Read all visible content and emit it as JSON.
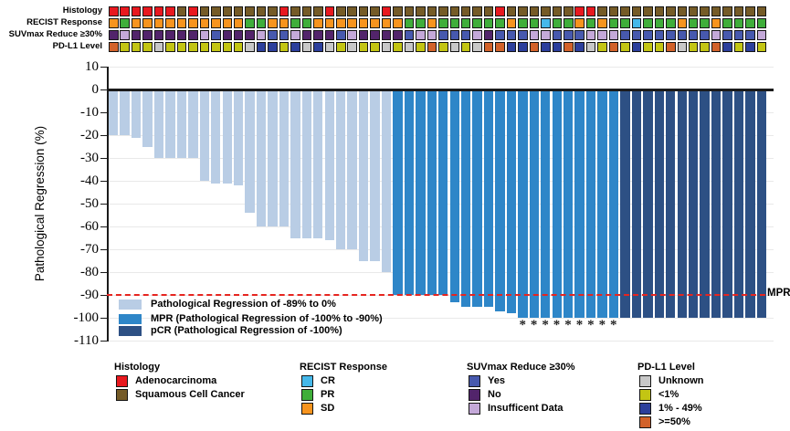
{
  "tracks": {
    "rows": [
      {
        "id": "histology",
        "label": "Histology",
        "values": [
          "A",
          "A",
          "A",
          "A",
          "A",
          "A",
          "S",
          "A",
          "S",
          "S",
          "S",
          "S",
          "S",
          "S",
          "S",
          "A",
          "S",
          "S",
          "S",
          "A",
          "S",
          "S",
          "S",
          "S",
          "A",
          "S",
          "S",
          "S",
          "S",
          "S",
          "S",
          "S",
          "S",
          "S",
          "A",
          "S",
          "S",
          "S",
          "S",
          "S",
          "S",
          "A",
          "A",
          "S",
          "S",
          "S",
          "S",
          "S",
          "S",
          "S",
          "S",
          "S",
          "S",
          "S",
          "S",
          "S",
          "S",
          "S"
        ]
      },
      {
        "id": "recist",
        "label": "RECIST Response",
        "values": [
          "SD",
          "PR",
          "SD",
          "SD",
          "SD",
          "SD",
          "SD",
          "SD",
          "SD",
          "SD",
          "SD",
          "SD",
          "PR",
          "PR",
          "SD",
          "SD",
          "PR",
          "PR",
          "SD",
          "SD",
          "SD",
          "SD",
          "SD",
          "SD",
          "SD",
          "SD",
          "PR",
          "PR",
          "SD",
          "PR",
          "PR",
          "PR",
          "PR",
          "PR",
          "PR",
          "SD",
          "PR",
          "PR",
          "CR",
          "PR",
          "PR",
          "SD",
          "PR",
          "SD",
          "PR",
          "PR",
          "CR",
          "PR",
          "PR",
          "PR",
          "SD",
          "PR",
          "PR",
          "SD",
          "PR",
          "PR",
          "PR",
          "PR"
        ]
      },
      {
        "id": "suvmax",
        "label": "SUVmax Reduce ≥30%",
        "values": [
          "N",
          "I",
          "N",
          "N",
          "N",
          "N",
          "N",
          "N",
          "I",
          "Y",
          "N",
          "N",
          "N",
          "I",
          "Y",
          "Y",
          "I",
          "N",
          "N",
          "N",
          "Y",
          "I",
          "N",
          "N",
          "N",
          "N",
          "Y",
          "I",
          "I",
          "Y",
          "Y",
          "Y",
          "I",
          "N",
          "Y",
          "Y",
          "Y",
          "I",
          "I",
          "Y",
          "Y",
          "Y",
          "I",
          "I",
          "I",
          "Y",
          "Y",
          "Y",
          "Y",
          "Y",
          "Y",
          "Y",
          "Y",
          "I",
          "Y",
          "Y",
          "Y",
          "I"
        ]
      },
      {
        "id": "pdl1",
        "label": "PD-L1 Level",
        "values": [
          "H",
          "L",
          "L",
          "L",
          "U",
          "L",
          "L",
          "L",
          "L",
          "L",
          "L",
          "L",
          "U",
          "M",
          "M",
          "L",
          "M",
          "U",
          "M",
          "U",
          "L",
          "U",
          "L",
          "L",
          "U",
          "L",
          "U",
          "L",
          "H",
          "L",
          "U",
          "L",
          "U",
          "H",
          "H",
          "M",
          "M",
          "H",
          "M",
          "M",
          "H",
          "M",
          "U",
          "L",
          "H",
          "L",
          "M",
          "L",
          "L",
          "H",
          "U",
          "L",
          "L",
          "H",
          "M",
          "L",
          "M",
          "L"
        ]
      }
    ],
    "palette": {
      "histology": {
        "A": "#e8191f",
        "S": "#755b27"
      },
      "recist": {
        "CR": "#45b8ea",
        "PR": "#3fae3a",
        "SD": "#f7941e"
      },
      "suvmax": {
        "Y": "#4759ae",
        "N": "#52246b",
        "I": "#c4a9d9"
      },
      "pdl1": {
        "U": "#c8c8c8",
        "L": "#c3c513",
        "M": "#2c3f9c",
        "H": "#d2622a"
      }
    }
  },
  "chart_data": {
    "type": "bar",
    "title": "",
    "xlabel": "",
    "ylabel": "Pathological Regression (%)",
    "ylim": [
      -110,
      10
    ],
    "yticks": [
      10,
      0,
      -10,
      -20,
      -30,
      -40,
      -50,
      -60,
      -70,
      -80,
      -90,
      -100,
      -110
    ],
    "grid": "horizontal",
    "n_patients": 58,
    "values": [
      -20,
      -20,
      -21,
      -25,
      -30,
      -30,
      -30,
      -30,
      -40,
      -41,
      -41,
      -42,
      -54,
      -60,
      -60,
      -60,
      -65,
      -65,
      -65,
      -66,
      -70,
      -70,
      -75,
      -75,
      -80,
      -90,
      -90,
      -90,
      -90,
      -90,
      -93,
      -95,
      -95,
      -95,
      -97,
      -98,
      -100,
      -100,
      -100,
      -100,
      -100,
      -100,
      -100,
      -100,
      -100,
      -100,
      -100,
      -100,
      -100,
      -100,
      -100,
      -100,
      -100,
      -100,
      -100,
      -100,
      -100,
      -100
    ],
    "groups": [
      "PR",
      "PR",
      "PR",
      "PR",
      "PR",
      "PR",
      "PR",
      "PR",
      "PR",
      "PR",
      "PR",
      "PR",
      "PR",
      "PR",
      "PR",
      "PR",
      "PR",
      "PR",
      "PR",
      "PR",
      "PR",
      "PR",
      "PR",
      "PR",
      "PR",
      "MPR",
      "MPR",
      "MPR",
      "MPR",
      "MPR",
      "MPR",
      "MPR",
      "MPR",
      "MPR",
      "MPR",
      "MPR",
      "MPR",
      "MPR",
      "MPR",
      "MPR",
      "MPR",
      "MPR",
      "MPR",
      "MPR",
      "MPR",
      "pCR",
      "pCR",
      "pCR",
      "pCR",
      "pCR",
      "pCR",
      "pCR",
      "pCR",
      "pCR",
      "pCR",
      "pCR",
      "pCR",
      "pCR"
    ],
    "bar_colors": {
      "PR": "#b9cde5",
      "MPR": "#2e86c8",
      "pCR": "#2d5084"
    },
    "asterisk_indices": [
      37,
      38,
      39,
      40,
      41,
      42,
      43,
      44,
      45
    ],
    "asterisk_symbol": "*",
    "reference_line": {
      "y": -90,
      "label": "MPR",
      "color": "#e62520",
      "style": "dashed"
    },
    "legend": [
      {
        "key": "PR",
        "label": "Pathological Regression of -89% to 0%"
      },
      {
        "key": "MPR",
        "label": "MPR (Pathological Regression of -100% to -90%)"
      },
      {
        "key": "pCR",
        "label": "pCR (Pathological Regression of -100%)"
      }
    ]
  },
  "legends": [
    {
      "id": "histology",
      "title": "Histology",
      "items": [
        {
          "label": "Adenocarcinoma",
          "color": "#e8191f"
        },
        {
          "label": "Squamous Cell Cancer",
          "color": "#755b27"
        }
      ]
    },
    {
      "id": "recist",
      "title": "RECIST Response",
      "items": [
        {
          "label": "CR",
          "color": "#45b8ea"
        },
        {
          "label": "PR",
          "color": "#3fae3a"
        },
        {
          "label": "SD",
          "color": "#f7941e"
        }
      ]
    },
    {
      "id": "suvmax",
      "title": "SUVmax Reduce ≥30%",
      "items": [
        {
          "label": "Yes",
          "color": "#4759ae"
        },
        {
          "label": "No",
          "color": "#52246b"
        },
        {
          "label": "Insufficent Data",
          "color": "#c4a9d9"
        }
      ]
    },
    {
      "id": "pdl1",
      "title": "PD-L1 Level",
      "items": [
        {
          "label": "Unknown",
          "color": "#c8c8c8"
        },
        {
          "label": "<1%",
          "color": "#c3c513"
        },
        {
          "label": "1% - 49%",
          "color": "#2c3f9c"
        },
        {
          "label": ">=50%",
          "color": "#d2622a"
        }
      ]
    }
  ]
}
